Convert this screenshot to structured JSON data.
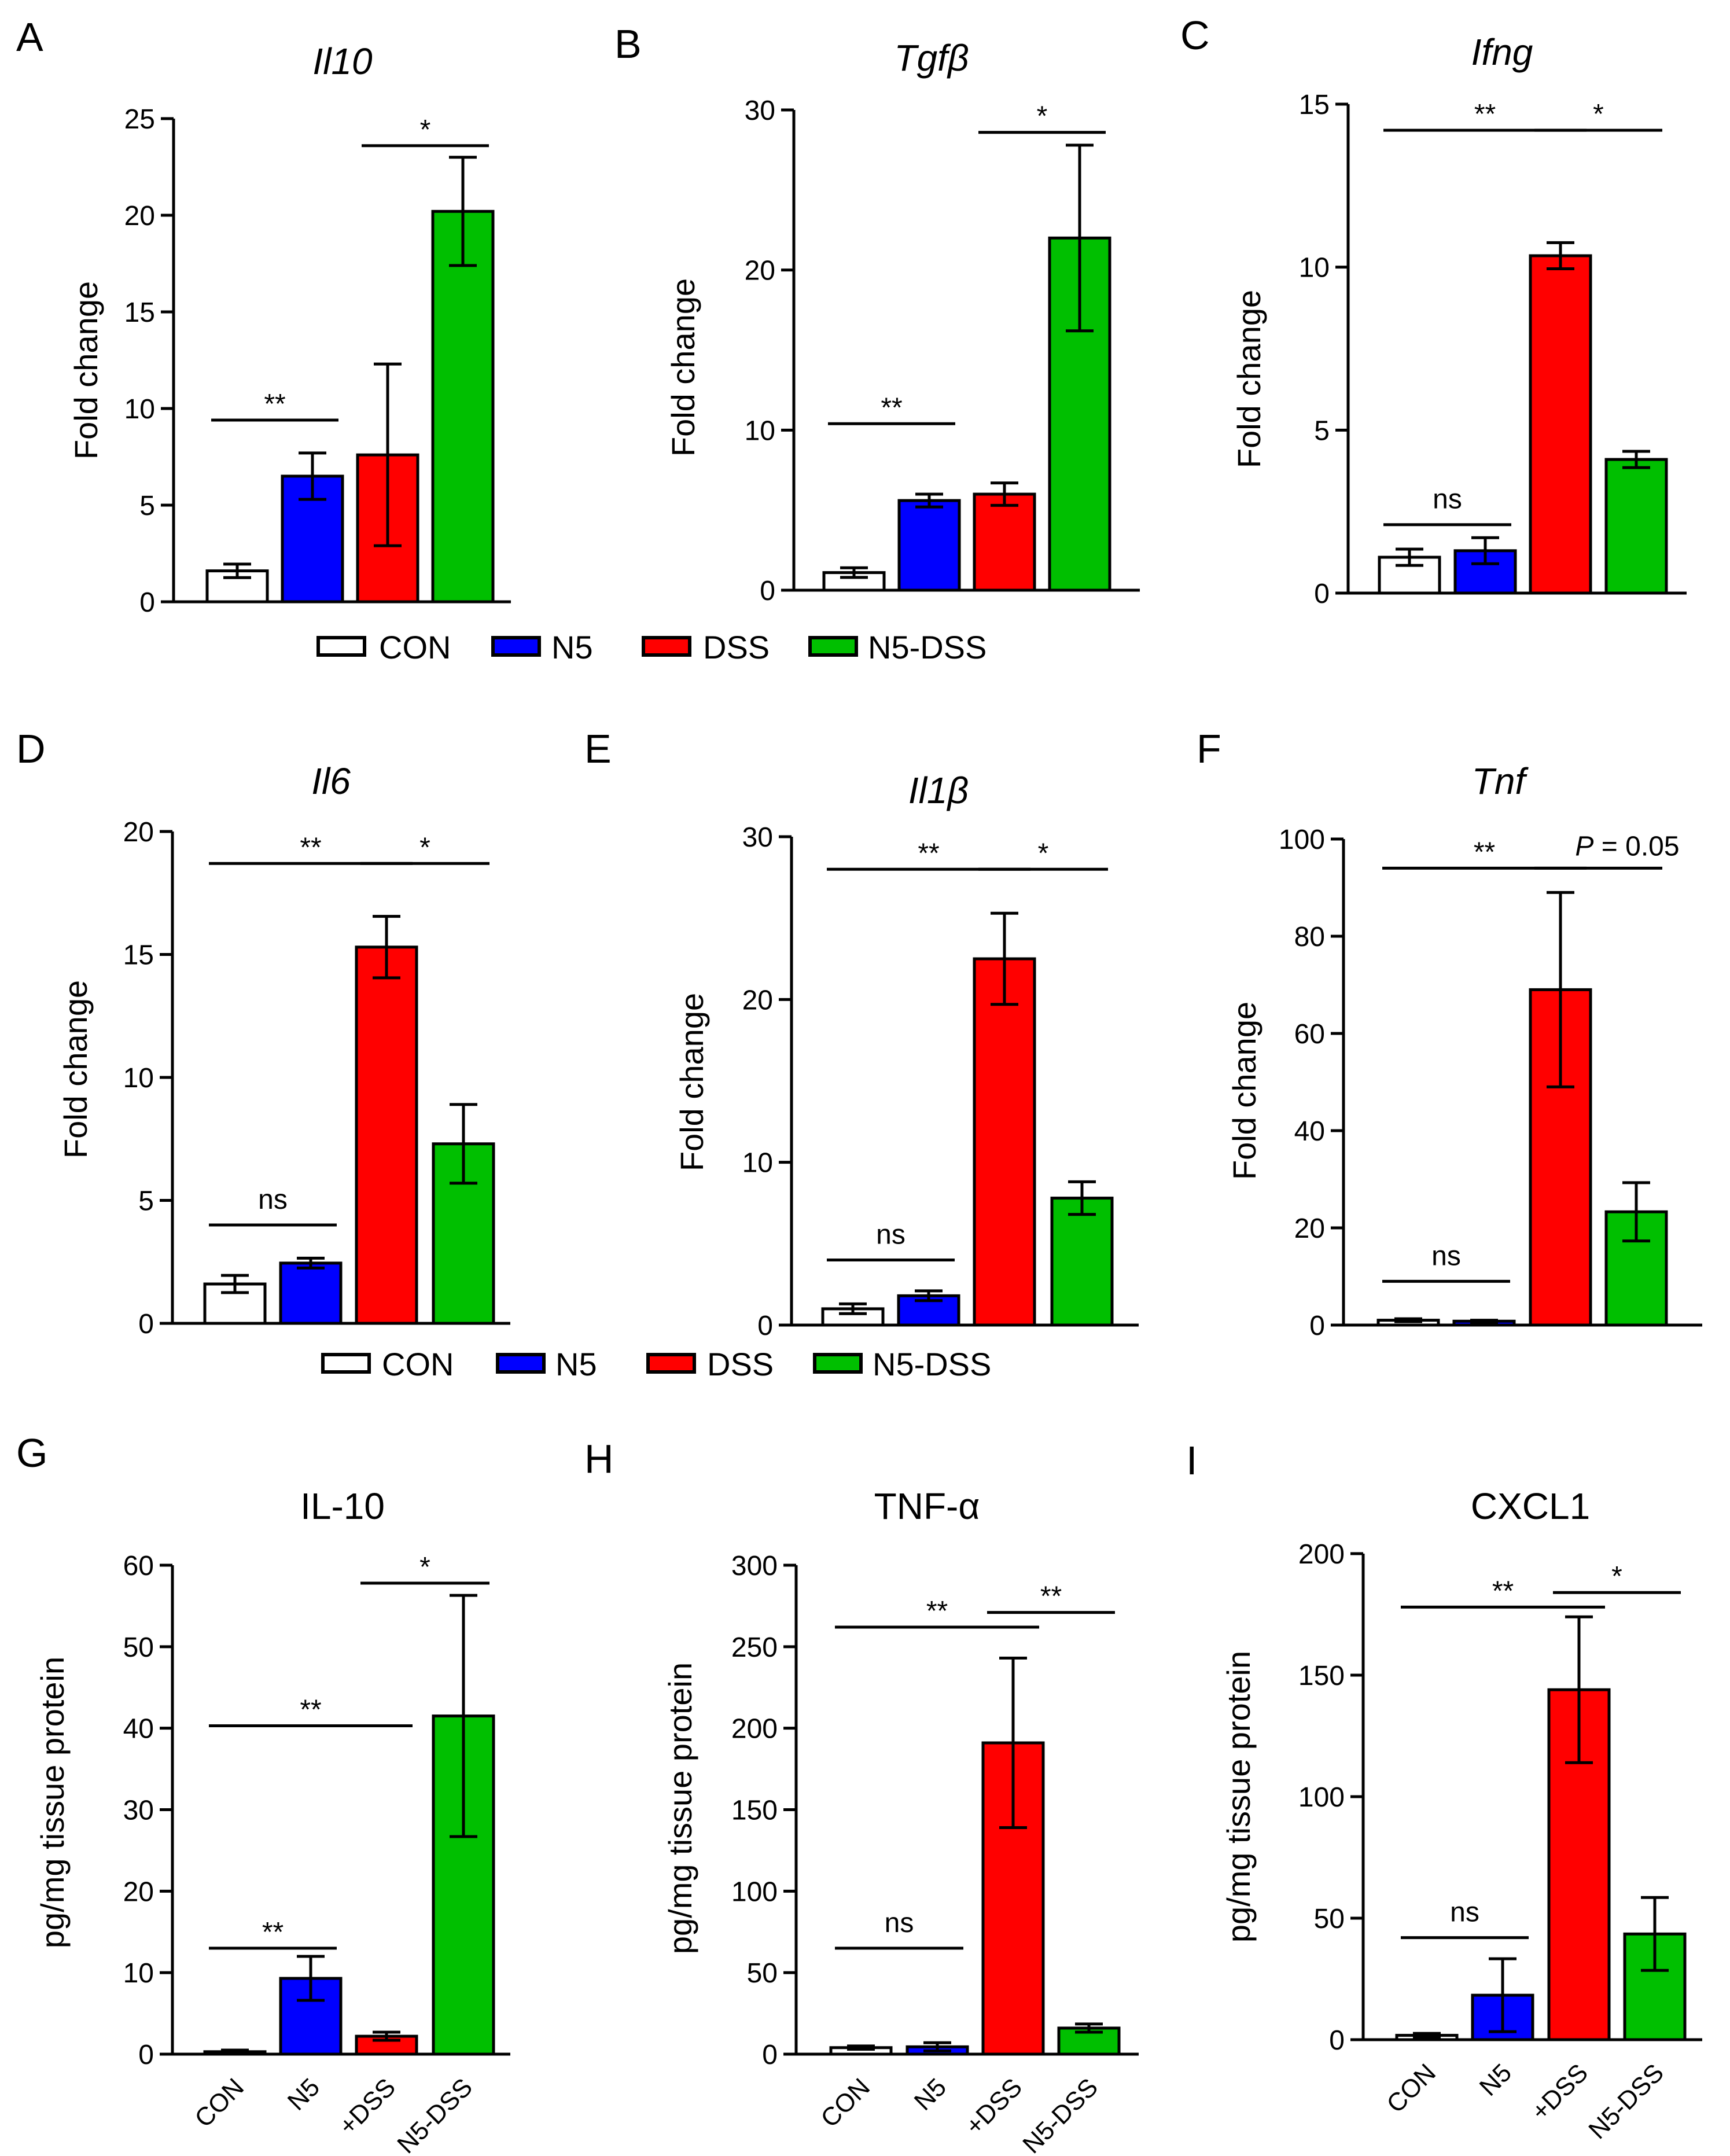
{
  "legends": [
    {
      "items": [
        {
          "label": "CON",
          "color": "#ffffff"
        },
        {
          "label": "N5",
          "color": "#0000ff"
        },
        {
          "label": "DSS",
          "color": "#ff0000"
        },
        {
          "label": "N5-DSS",
          "color": "#00bf00"
        }
      ]
    },
    {
      "items": [
        {
          "label": "CON",
          "color": "#ffffff"
        },
        {
          "label": "N5",
          "color": "#0000ff"
        },
        {
          "label": "DSS",
          "color": "#ff0000"
        },
        {
          "label": "N5-DSS",
          "color": "#00bf00"
        }
      ]
    }
  ],
  "chart_data": [
    {
      "panel": "A",
      "type": "bar",
      "title": "Il10",
      "title_italic": true,
      "ylabel": "Fold change",
      "categories": [
        "CON",
        "N5",
        "DSS",
        "N5-DSS"
      ],
      "values": [
        1.6,
        6.5,
        7.6,
        20.2
      ],
      "errors": [
        0.35,
        1.2,
        4.7,
        2.8
      ],
      "colors": [
        "#ffffff",
        "#0000ff",
        "#ff0000",
        "#00bf00"
      ],
      "ylim": [
        0,
        25
      ],
      "yticks": [
        "0",
        "5",
        "10",
        "15",
        "20",
        "25"
      ],
      "show_categories": false,
      "annotations": [
        {
          "text": "**",
          "from": 0,
          "to": 1,
          "y": 9.4
        },
        {
          "text": "*",
          "from": 2,
          "to": 3,
          "y": 23.6
        }
      ]
    },
    {
      "panel": "B",
      "type": "bar",
      "title": "Tgfβ",
      "title_italic": true,
      "ylabel": "Fold change",
      "categories": [
        "CON",
        "N5",
        "DSS",
        "N5-DSS"
      ],
      "values": [
        1.1,
        5.6,
        6.0,
        22.0
      ],
      "errors": [
        0.3,
        0.4,
        0.7,
        5.8
      ],
      "colors": [
        "#ffffff",
        "#0000ff",
        "#ff0000",
        "#00bf00"
      ],
      "ylim": [
        0,
        30
      ],
      "yticks": [
        "0",
        "10",
        "20",
        "30"
      ],
      "show_categories": false,
      "annotations": [
        {
          "text": "**",
          "from": 0,
          "to": 1,
          "y": 10.4
        },
        {
          "text": "*",
          "from": 2,
          "to": 3,
          "y": 28.6
        }
      ]
    },
    {
      "panel": "C",
      "type": "bar",
      "title": "Ifng",
      "title_italic": true,
      "ylabel": "Fold change",
      "categories": [
        "CON",
        "N5",
        "DSS",
        "N5-DSS"
      ],
      "values": [
        1.1,
        1.3,
        10.35,
        4.1
      ],
      "errors": [
        0.25,
        0.4,
        0.4,
        0.25
      ],
      "colors": [
        "#ffffff",
        "#0000ff",
        "#ff0000",
        "#00bf00"
      ],
      "ylim": [
        0,
        15
      ],
      "yticks": [
        "0",
        "5",
        "10",
        "15"
      ],
      "show_categories": false,
      "annotations": [
        {
          "text": "ns",
          "from": 0,
          "to": 1,
          "y": 2.1
        },
        {
          "text": "**",
          "from": 0,
          "to": 2,
          "y": 14.2
        },
        {
          "text": "*",
          "from": 2,
          "to": 3,
          "y": 14.2
        }
      ]
    },
    {
      "panel": "D",
      "type": "bar",
      "title": "Il6",
      "title_italic": true,
      "ylabel": "Fold change",
      "categories": [
        "CON",
        "N5",
        "DSS",
        "N5-DSS"
      ],
      "values": [
        1.6,
        2.45,
        15.3,
        7.3
      ],
      "errors": [
        0.35,
        0.2,
        1.25,
        1.6
      ],
      "colors": [
        "#ffffff",
        "#0000ff",
        "#ff0000",
        "#00bf00"
      ],
      "ylim": [
        0,
        20
      ],
      "yticks": [
        "0",
        "5",
        "10",
        "15",
        "20"
      ],
      "show_categories": false,
      "annotations": [
        {
          "text": "ns",
          "from": 0,
          "to": 1,
          "y": 4.0
        },
        {
          "text": "**",
          "from": 0,
          "to": 2,
          "y": 18.7
        },
        {
          "text": "*",
          "from": 2,
          "to": 3,
          "y": 18.7
        }
      ]
    },
    {
      "panel": "E",
      "type": "bar",
      "title": "Il1β",
      "title_italic": true,
      "ylabel": "Fold change",
      "categories": [
        "CON",
        "N5",
        "DSS",
        "N5-DSS"
      ],
      "values": [
        1.0,
        1.8,
        22.5,
        7.8
      ],
      "errors": [
        0.3,
        0.3,
        2.8,
        1.0
      ],
      "colors": [
        "#ffffff",
        "#0000ff",
        "#ff0000",
        "#00bf00"
      ],
      "ylim": [
        0,
        30
      ],
      "yticks": [
        "0",
        "10",
        "20",
        "30"
      ],
      "show_categories": false,
      "annotations": [
        {
          "text": "ns",
          "from": 0,
          "to": 1,
          "y": 4.0
        },
        {
          "text": "**",
          "from": 0,
          "to": 2,
          "y": 28.0
        },
        {
          "text": "*",
          "from": 2,
          "to": 3,
          "y": 28.0
        }
      ]
    },
    {
      "panel": "F",
      "type": "bar",
      "title": "Tnf",
      "title_italic": true,
      "ylabel": "Fold change",
      "categories": [
        "CON",
        "N5",
        "DSS",
        "N5-DSS"
      ],
      "values": [
        1.0,
        0.8,
        69.0,
        23.3
      ],
      "errors": [
        0.3,
        0.2,
        20.0,
        6.0
      ],
      "colors": [
        "#ffffff",
        "#0000ff",
        "#ff0000",
        "#00bf00"
      ],
      "ylim": [
        0,
        100
      ],
      "yticks": [
        "0",
        "20",
        "40",
        "60",
        "80",
        "100"
      ],
      "show_categories": false,
      "annotations": [
        {
          "text": "ns",
          "from": 0,
          "to": 1,
          "y": 9.0
        },
        {
          "text": "**",
          "from": 0,
          "to": 2,
          "y": 94.0
        },
        {
          "text": "P = 0.05",
          "from": 2,
          "to": 3,
          "y": 94.0
        }
      ]
    },
    {
      "panel": "G",
      "type": "bar",
      "title": "IL-10",
      "title_italic": false,
      "ylabel": "pg/mg tissue protein",
      "categories": [
        "CON",
        "N5",
        "+DSS",
        "N5-DSS"
      ],
      "values": [
        0.3,
        9.3,
        2.2,
        41.5
      ],
      "errors": [
        0.2,
        2.7,
        0.5,
        14.8
      ],
      "colors": [
        "#ffffff",
        "#0000ff",
        "#ff0000",
        "#00bf00"
      ],
      "ylim": [
        0,
        60
      ],
      "yticks": [
        "0",
        "10",
        "20",
        "30",
        "40",
        "50",
        "60"
      ],
      "show_categories": true,
      "annotations": [
        {
          "text": "**",
          "from": 0,
          "to": 1,
          "y": 13.0
        },
        {
          "text": "**",
          "from": 0,
          "to": 2,
          "y": 40.3
        },
        {
          "text": "*",
          "from": 2,
          "to": 3,
          "y": 57.8
        }
      ]
    },
    {
      "panel": "H",
      "type": "bar",
      "title": "TNF-α",
      "title_italic": false,
      "ylabel": "pg/mg tissue protein",
      "categories": [
        "CON",
        "N5",
        "+DSS",
        "N5-DSS"
      ],
      "values": [
        4.0,
        4.5,
        191.0,
        16.0
      ],
      "errors": [
        1.0,
        2.5,
        52.0,
        2.5
      ],
      "colors": [
        "#ffffff",
        "#0000ff",
        "#ff0000",
        "#00bf00"
      ],
      "ylim": [
        0,
        300
      ],
      "yticks": [
        "0",
        "50",
        "100",
        "150",
        "200",
        "250",
        "300"
      ],
      "show_categories": true,
      "annotations": [
        {
          "text": "ns",
          "from": 0,
          "to": 1,
          "y": 65.0
        },
        {
          "text": "**",
          "from": 0,
          "to": 2,
          "y": 262.0
        },
        {
          "text": "**",
          "from": 2,
          "to": 3,
          "y": 271.0
        }
      ]
    },
    {
      "panel": "I",
      "type": "bar",
      "title": "CXCL1",
      "title_italic": false,
      "ylabel": "pg/mg tissue protein",
      "categories": [
        "CON",
        "N5",
        "+DSS",
        "N5-DSS"
      ],
      "values": [
        1.8,
        18.3,
        144.0,
        43.5
      ],
      "errors": [
        0.8,
        15.0,
        30.0,
        15.0
      ],
      "colors": [
        "#ffffff",
        "#0000ff",
        "#ff0000",
        "#00bf00"
      ],
      "ylim": [
        0,
        200
      ],
      "yticks": [
        "0",
        "50",
        "100",
        "150",
        "200"
      ],
      "show_categories": true,
      "annotations": [
        {
          "text": "ns",
          "from": 0,
          "to": 1,
          "y": 42.0
        },
        {
          "text": "**",
          "from": 0,
          "to": 2,
          "y": 178.0
        },
        {
          "text": "*",
          "from": 2,
          "to": 3,
          "y": 184.0
        }
      ]
    }
  ]
}
